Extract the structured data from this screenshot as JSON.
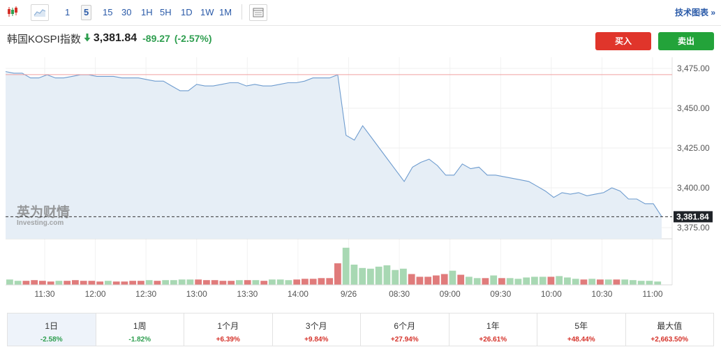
{
  "toolbar": {
    "chart_type_icons": [
      "candlestick-icon",
      "area-chart-icon"
    ],
    "timeframes": [
      "1",
      "5",
      "15",
      "30",
      "1H",
      "5H",
      "1D",
      "1W",
      "1M"
    ],
    "active_timeframe": "5",
    "settings_icon": "list-settings-icon",
    "tech_chart_link": "技术图表 »"
  },
  "quote": {
    "name": "韩国KOSPI指数",
    "direction_icon": "down-arrow-icon",
    "price": "3,381.84",
    "change": "-89.27",
    "change_pct": "(-2.57%)"
  },
  "actions": {
    "buy": "买入",
    "sell": "卖出"
  },
  "watermark": {
    "cn": "英为财情",
    "en": "Investing.com"
  },
  "colors": {
    "up": "#d5322a",
    "down": "#2e9e4f",
    "line": "#6e9ccf",
    "area": "#e6eef6",
    "prev_close": "#f0a0a0"
  },
  "chart_data": {
    "type": "area",
    "title": "",
    "xlabel": "",
    "ylabel": "",
    "ylim": [
      3368,
      3482
    ],
    "y_ticks": [
      "3,475.00",
      "3,450.00",
      "3,425.00",
      "3,400.00",
      "3,375.00"
    ],
    "y_tick_values": [
      3475,
      3450,
      3425,
      3400,
      3375
    ],
    "x_ticks": [
      "11:30",
      "12:00",
      "12:30",
      "13:00",
      "13:30",
      "14:00",
      "9/26",
      "08:30",
      "09:00",
      "09:30",
      "10:00",
      "10:30",
      "11:00"
    ],
    "previous_close": 3471.11,
    "last_price_label": "3,381.84",
    "last_price": 3381.84,
    "grid": true,
    "series": [
      {
        "values": [
          3473,
          3472,
          3472,
          3469,
          3469,
          3471,
          3469,
          3469,
          3470,
          3471,
          3471,
          3470,
          3470,
          3470,
          3469,
          3469,
          3469,
          3468,
          3467,
          3467,
          3464,
          3461,
          3461,
          3465,
          3464,
          3464,
          3465,
          3466,
          3466,
          3464,
          3465,
          3464,
          3464,
          3465,
          3466,
          3466,
          3467,
          3469,
          3469,
          3469,
          3471,
          3433,
          3430,
          3439,
          3432,
          3425,
          3418,
          3411,
          3404,
          3413,
          3416,
          3418,
          3414,
          3408,
          3408,
          3415,
          3412,
          3413,
          3408,
          3408,
          3407,
          3406,
          3405,
          3404,
          3401,
          3398,
          3394,
          3397,
          3396,
          3397,
          3395,
          3396,
          3397,
          3400,
          3398,
          3393,
          3393,
          3390,
          3390,
          3382
        ]
      }
    ],
    "volume": [
      {
        "v": 8,
        "d": "up"
      },
      {
        "v": 6,
        "d": "up"
      },
      {
        "v": 6,
        "d": "down"
      },
      {
        "v": 7,
        "d": "down"
      },
      {
        "v": 6,
        "d": "down"
      },
      {
        "v": 5,
        "d": "down"
      },
      {
        "v": 6,
        "d": "up"
      },
      {
        "v": 6,
        "d": "down"
      },
      {
        "v": 7,
        "d": "down"
      },
      {
        "v": 6,
        "d": "down"
      },
      {
        "v": 6,
        "d": "down"
      },
      {
        "v": 5,
        "d": "down"
      },
      {
        "v": 6,
        "d": "up"
      },
      {
        "v": 5,
        "d": "down"
      },
      {
        "v": 5,
        "d": "down"
      },
      {
        "v": 6,
        "d": "down"
      },
      {
        "v": 6,
        "d": "down"
      },
      {
        "v": 7,
        "d": "up"
      },
      {
        "v": 6,
        "d": "down"
      },
      {
        "v": 7,
        "d": "up"
      },
      {
        "v": 7,
        "d": "up"
      },
      {
        "v": 8,
        "d": "up"
      },
      {
        "v": 8,
        "d": "up"
      },
      {
        "v": 8,
        "d": "down"
      },
      {
        "v": 7,
        "d": "down"
      },
      {
        "v": 7,
        "d": "down"
      },
      {
        "v": 6,
        "d": "down"
      },
      {
        "v": 6,
        "d": "down"
      },
      {
        "v": 7,
        "d": "up"
      },
      {
        "v": 7,
        "d": "down"
      },
      {
        "v": 7,
        "d": "up"
      },
      {
        "v": 6,
        "d": "down"
      },
      {
        "v": 8,
        "d": "up"
      },
      {
        "v": 8,
        "d": "up"
      },
      {
        "v": 7,
        "d": "up"
      },
      {
        "v": 8,
        "d": "down"
      },
      {
        "v": 9,
        "d": "down"
      },
      {
        "v": 9,
        "d": "down"
      },
      {
        "v": 10,
        "d": "down"
      },
      {
        "v": 10,
        "d": "down"
      },
      {
        "v": 32,
        "d": "down"
      },
      {
        "v": 55,
        "d": "up"
      },
      {
        "v": 30,
        "d": "up"
      },
      {
        "v": 25,
        "d": "up"
      },
      {
        "v": 24,
        "d": "up"
      },
      {
        "v": 27,
        "d": "up"
      },
      {
        "v": 29,
        "d": "up"
      },
      {
        "v": 22,
        "d": "up"
      },
      {
        "v": 24,
        "d": "up"
      },
      {
        "v": 16,
        "d": "down"
      },
      {
        "v": 12,
        "d": "down"
      },
      {
        "v": 12,
        "d": "down"
      },
      {
        "v": 14,
        "d": "down"
      },
      {
        "v": 16,
        "d": "down"
      },
      {
        "v": 21,
        "d": "up"
      },
      {
        "v": 15,
        "d": "down"
      },
      {
        "v": 12,
        "d": "up"
      },
      {
        "v": 10,
        "d": "up"
      },
      {
        "v": 10,
        "d": "down"
      },
      {
        "v": 14,
        "d": "up"
      },
      {
        "v": 10,
        "d": "down"
      },
      {
        "v": 10,
        "d": "up"
      },
      {
        "v": 9,
        "d": "up"
      },
      {
        "v": 11,
        "d": "up"
      },
      {
        "v": 12,
        "d": "up"
      },
      {
        "v": 12,
        "d": "up"
      },
      {
        "v": 12,
        "d": "down"
      },
      {
        "v": 13,
        "d": "up"
      },
      {
        "v": 11,
        "d": "up"
      },
      {
        "v": 9,
        "d": "up"
      },
      {
        "v": 8,
        "d": "down"
      },
      {
        "v": 9,
        "d": "up"
      },
      {
        "v": 8,
        "d": "down"
      },
      {
        "v": 8,
        "d": "up"
      },
      {
        "v": 8,
        "d": "down"
      },
      {
        "v": 8,
        "d": "up"
      },
      {
        "v": 7,
        "d": "up"
      },
      {
        "v": 6,
        "d": "up"
      },
      {
        "v": 6,
        "d": "up"
      },
      {
        "v": 5,
        "d": "up"
      }
    ]
  },
  "periods": [
    {
      "label": "1日",
      "value": "-2.58%",
      "sign": "neg",
      "active": true
    },
    {
      "label": "1周",
      "value": "-1.82%",
      "sign": "neg",
      "active": false
    },
    {
      "label": "1个月",
      "value": "+6.39%",
      "sign": "pos",
      "active": false
    },
    {
      "label": "3个月",
      "value": "+9.84%",
      "sign": "pos",
      "active": false
    },
    {
      "label": "6个月",
      "value": "+27.94%",
      "sign": "pos",
      "active": false
    },
    {
      "label": "1年",
      "value": "+26.61%",
      "sign": "pos",
      "active": false
    },
    {
      "label": "5年",
      "value": "+48.44%",
      "sign": "pos",
      "active": false
    },
    {
      "label": "最大值",
      "value": "+2,663.50%",
      "sign": "pos",
      "active": false
    }
  ]
}
